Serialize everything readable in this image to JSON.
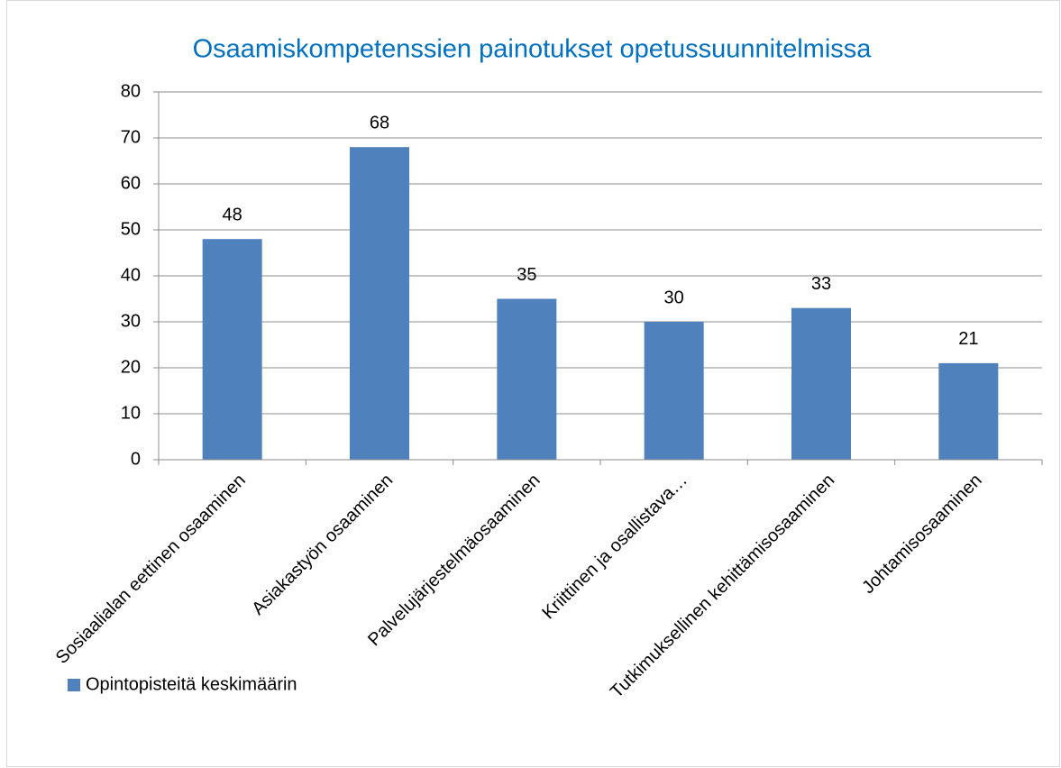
{
  "chart_data": {
    "type": "bar",
    "title": "Osaamiskompetenssien painotukset opetussuunnitelmissa",
    "categories": [
      "Sosiaalialan eettinen osaaminen",
      "Asiakastyön osaaminen",
      "Palvelujärjestelmäosaaminen",
      "Kriittinen ja osallistava…",
      "Tutkimuksellinen kehittämisosaaminen",
      "Johtamisosaaminen"
    ],
    "series": [
      {
        "name": "Opintopisteitä keskimäärin",
        "color": "#4f81bd",
        "values": [
          48,
          68,
          35,
          30,
          33,
          21
        ]
      }
    ],
    "ylim": [
      0,
      80
    ],
    "yticks": [
      0,
      10,
      20,
      30,
      40,
      50,
      60,
      70,
      80
    ],
    "grid": true,
    "legend": "bottom-left",
    "data_labels": true
  }
}
